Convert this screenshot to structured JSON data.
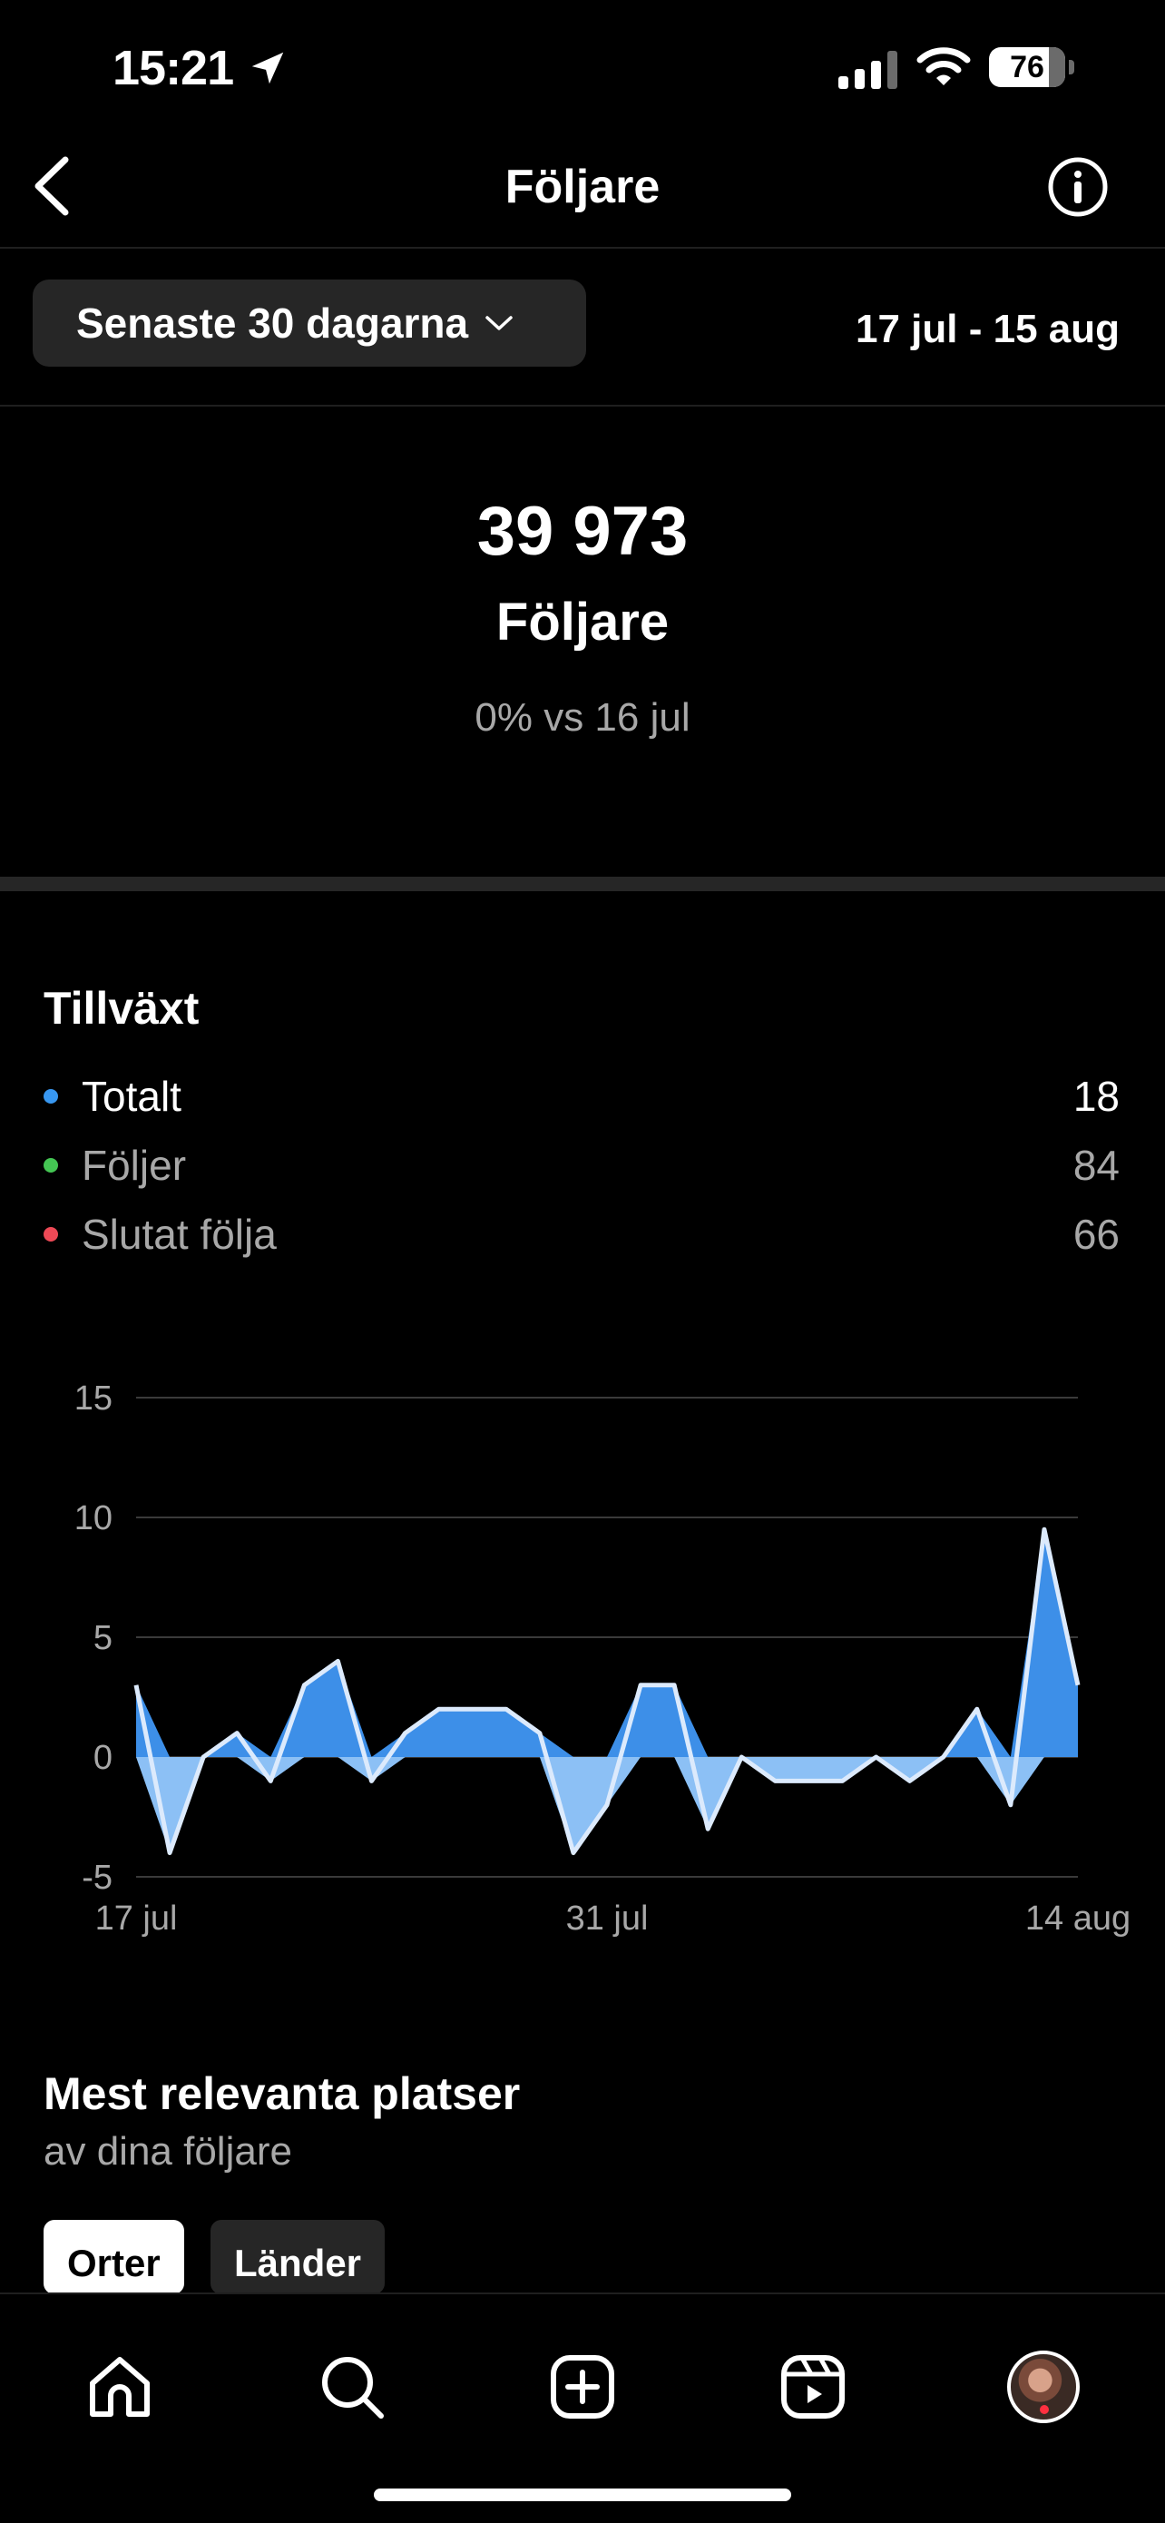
{
  "status_bar": {
    "time": "15:21",
    "battery": "76"
  },
  "header": {
    "title": "Följare"
  },
  "range": {
    "label": "Senaste 30 dagarna",
    "dates": "17 jul - 15 aug"
  },
  "summary": {
    "count": "39 973",
    "label": "Följare",
    "comparison": "0% vs 16 jul"
  },
  "growth": {
    "title": "Tillväxt",
    "rows": [
      {
        "label": "Totalt",
        "value": "18",
        "color": "#3897f0"
      },
      {
        "label": "Följer",
        "value": "84",
        "color": "#44c553"
      },
      {
        "label": "Slutat följa",
        "value": "66",
        "color": "#ed4956"
      }
    ]
  },
  "chart_data": {
    "type": "area",
    "y_ticks": [
      "15",
      "10",
      "5",
      "0",
      "-5"
    ],
    "x_tick_labels": [
      "17 jul",
      "31 jul",
      "14 aug"
    ],
    "ylim": [
      -5,
      15
    ],
    "grid": true,
    "series": [
      {
        "values": [
          3,
          -4,
          0,
          1,
          -1,
          3,
          4,
          -1,
          1,
          2,
          2,
          2,
          1,
          -4,
          -2,
          3,
          3,
          -3,
          0,
          -1,
          -1,
          -1,
          0,
          -1,
          0,
          2,
          -2,
          9.5,
          3
        ]
      }
    ],
    "colors": {
      "positive": "#3d8fe8",
      "negative": "#8cc0f5",
      "line": "#dceafc"
    }
  },
  "places": {
    "title": "Mest relevanta platser",
    "subtitle": "av dina följare",
    "tabs": [
      "Orter",
      "Länder"
    ]
  },
  "nav": {
    "items": [
      "home-icon",
      "search-icon",
      "create-icon",
      "reels-icon",
      "profile-avatar"
    ]
  }
}
